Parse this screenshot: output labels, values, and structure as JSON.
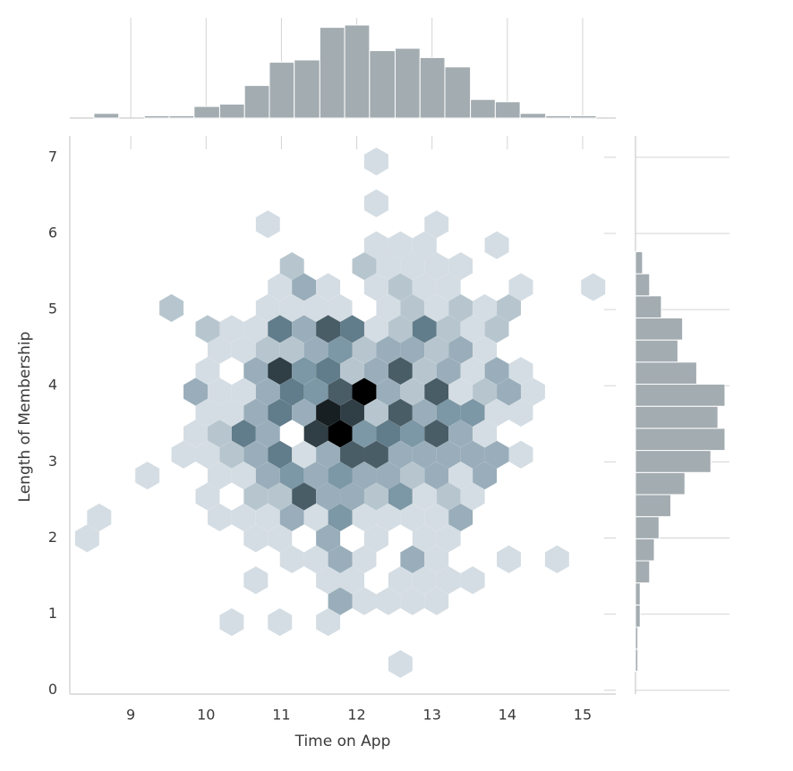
{
  "chart_data": {
    "type": "hexbin",
    "x_label": "Time on App",
    "y_label": "Length of Membership",
    "xlim": [
      8.19,
      15.44
    ],
    "ylim": [
      -0.05,
      7.28
    ],
    "xticks": [
      9,
      10,
      11,
      12,
      13,
      14,
      15
    ],
    "yticks": [
      0,
      1,
      2,
      3,
      4,
      5,
      6,
      7
    ],
    "hex_colors": [
      "#f2f5f7",
      "#6d8b9b",
      "#000000"
    ],
    "hist_color": "#a3acb1",
    "x": [
      12.26,
      12.26,
      10.82,
      13.06,
      12.26,
      12.58,
      12.9,
      13.86,
      11.14,
      12.1,
      12.42,
      12.74,
      13.06,
      13.38,
      10.98,
      11.3,
      11.62,
      12.26,
      12.58,
      12.9,
      13.22,
      14.18,
      15.14,
      9.54,
      10.82,
      11.14,
      11.46,
      11.78,
      12.42,
      12.74,
      13.06,
      13.38,
      13.7,
      14.02,
      10.02,
      10.34,
      10.66,
      10.98,
      11.3,
      11.62,
      11.94,
      12.26,
      12.58,
      12.9,
      13.22,
      13.54,
      13.86,
      10.18,
      10.5,
      10.82,
      11.14,
      11.46,
      11.78,
      12.1,
      12.42,
      12.74,
      13.06,
      13.38,
      13.7,
      10.02,
      10.66,
      10.98,
      11.3,
      11.62,
      11.94,
      12.26,
      12.58,
      12.9,
      13.22,
      13.54,
      13.86,
      14.18,
      9.86,
      10.18,
      10.5,
      10.82,
      11.14,
      11.46,
      11.78,
      12.1,
      12.42,
      12.74,
      13.06,
      13.38,
      13.7,
      14.02,
      14.34,
      10.02,
      10.34,
      10.66,
      10.98,
      11.3,
      11.62,
      11.94,
      12.26,
      12.58,
      12.9,
      13.22,
      13.54,
      13.86,
      14.18,
      9.86,
      10.18,
      10.5,
      10.82,
      11.46,
      11.78,
      12.1,
      12.42,
      12.74,
      13.06,
      13.38,
      13.7,
      9.7,
      10.02,
      10.34,
      10.66,
      10.98,
      11.3,
      11.62,
      11.94,
      12.26,
      12.58,
      12.9,
      13.22,
      13.54,
      13.86,
      14.18,
      9.22,
      10.18,
      10.5,
      10.82,
      11.14,
      11.46,
      11.78,
      12.1,
      12.42,
      12.74,
      13.06,
      13.38,
      13.7,
      10.02,
      10.66,
      10.98,
      11.3,
      11.62,
      11.94,
      12.26,
      12.58,
      12.9,
      13.22,
      13.54,
      8.58,
      10.18,
      10.5,
      10.82,
      11.14,
      11.46,
      11.78,
      12.1,
      12.42,
      12.74,
      13.06,
      13.38,
      8.42,
      10.66,
      10.98,
      11.62,
      12.26,
      12.9,
      13.22,
      11.14,
      11.46,
      11.78,
      12.1,
      12.74,
      13.06,
      14.02,
      14.66,
      10.66,
      11.62,
      11.94,
      12.58,
      12.9,
      13.22,
      13.54,
      11.78,
      12.1,
      12.42,
      12.74,
      13.06,
      10.34,
      10.98,
      11.62,
      12.58
    ],
    "y": [
      6.945,
      6.395,
      6.12,
      6.12,
      5.845,
      5.845,
      5.845,
      5.845,
      5.57,
      5.57,
      5.57,
      5.57,
      5.57,
      5.57,
      5.295,
      5.295,
      5.295,
      5.295,
      5.295,
      5.295,
      5.295,
      5.295,
      5.295,
      5.02,
      5.02,
      5.02,
      5.02,
      5.02,
      5.02,
      5.02,
      5.02,
      5.02,
      5.02,
      5.02,
      4.745,
      4.745,
      4.745,
      4.745,
      4.745,
      4.745,
      4.745,
      4.745,
      4.745,
      4.745,
      4.745,
      4.745,
      4.745,
      4.47,
      4.47,
      4.47,
      4.47,
      4.47,
      4.47,
      4.47,
      4.47,
      4.47,
      4.47,
      4.47,
      4.47,
      4.195,
      4.195,
      4.195,
      4.195,
      4.195,
      4.195,
      4.195,
      4.195,
      4.195,
      4.195,
      4.195,
      4.195,
      4.195,
      3.92,
      3.92,
      3.92,
      3.92,
      3.92,
      3.92,
      3.92,
      3.92,
      3.92,
      3.92,
      3.92,
      3.92,
      3.92,
      3.92,
      3.92,
      3.645,
      3.645,
      3.645,
      3.645,
      3.645,
      3.645,
      3.645,
      3.645,
      3.645,
      3.645,
      3.645,
      3.645,
      3.645,
      3.645,
      3.37,
      3.37,
      3.37,
      3.37,
      3.37,
      3.37,
      3.37,
      3.37,
      3.37,
      3.37,
      3.37,
      3.37,
      3.095,
      3.095,
      3.095,
      3.095,
      3.095,
      3.095,
      3.095,
      3.095,
      3.095,
      3.095,
      3.095,
      3.095,
      3.095,
      3.095,
      3.095,
      2.82,
      2.82,
      2.82,
      2.82,
      2.82,
      2.82,
      2.82,
      2.82,
      2.82,
      2.82,
      2.82,
      2.82,
      2.82,
      2.545,
      2.545,
      2.545,
      2.545,
      2.545,
      2.545,
      2.545,
      2.545,
      2.545,
      2.545,
      2.545,
      2.27,
      2.27,
      2.27,
      2.27,
      2.27,
      2.27,
      2.27,
      2.27,
      2.27,
      2.27,
      2.27,
      2.27,
      1.995,
      1.995,
      1.995,
      1.995,
      1.995,
      1.995,
      1.995,
      1.72,
      1.72,
      1.72,
      1.72,
      1.72,
      1.72,
      1.72,
      1.72,
      1.445,
      1.445,
      1.445,
      1.445,
      1.445,
      1.445,
      1.445,
      1.17,
      1.17,
      1.17,
      1.17,
      1.17,
      0.895,
      0.895,
      0.895,
      0.345
    ],
    "counts": [
      1,
      1,
      1,
      1,
      1,
      1,
      1,
      1,
      2,
      2,
      1,
      1,
      1,
      1,
      1,
      3,
      1,
      1,
      2,
      1,
      1,
      1,
      1,
      2,
      1,
      1,
      1,
      1,
      1,
      2,
      1,
      2,
      1,
      2,
      2,
      1,
      1,
      5,
      3,
      6,
      5,
      1,
      2,
      5,
      2,
      1,
      2,
      1,
      1,
      2,
      2,
      3,
      4,
      2,
      3,
      3,
      2,
      3,
      1,
      1,
      3,
      7,
      4,
      5,
      2,
      3,
      6,
      2,
      3,
      1,
      3,
      1,
      3,
      1,
      1,
      3,
      5,
      4,
      6,
      9,
      3,
      2,
      6,
      1,
      2,
      3,
      1,
      1,
      1,
      3,
      5,
      3,
      8,
      7,
      2,
      6,
      3,
      4,
      4,
      1,
      1,
      1,
      2,
      5,
      3,
      7,
      9,
      4,
      5,
      4,
      6,
      3,
      1,
      1,
      1,
      2,
      3,
      5,
      1,
      3,
      6,
      6,
      3,
      3,
      3,
      3,
      3,
      1,
      1,
      1,
      1,
      3,
      4,
      3,
      4,
      3,
      3,
      2,
      3,
      1,
      3,
      1,
      2,
      2,
      6,
      3,
      3,
      2,
      4,
      1,
      2,
      1,
      1,
      1,
      1,
      1,
      3,
      1,
      4,
      1,
      1,
      1,
      1,
      3,
      1,
      1,
      1,
      3,
      1,
      1,
      1,
      1,
      1,
      3,
      1,
      3,
      1,
      1,
      1,
      1,
      1,
      1,
      1,
      1,
      1,
      1,
      3,
      1,
      1,
      1,
      1,
      1,
      1,
      1,
      1
    ],
    "marginal_x": {
      "bins": [
        8.51,
        8.84,
        9.18,
        9.51,
        9.84,
        10.18,
        10.51,
        10.84,
        11.17,
        11.51,
        11.84,
        12.17,
        12.51,
        12.84,
        13.17,
        13.51,
        13.84,
        14.17,
        14.51,
        14.84,
        15.18
      ],
      "counts": [
        2,
        0,
        1,
        1,
        5,
        6,
        14,
        24,
        25,
        39,
        40,
        29,
        30,
        26,
        22,
        8,
        7,
        2,
        1,
        1
      ]
    },
    "marginal_y": {
      "bins": [
        0.25,
        0.54,
        0.83,
        1.12,
        1.41,
        1.7,
        1.99,
        2.28,
        2.57,
        2.86,
        3.15,
        3.44,
        3.73,
        4.02,
        4.31,
        4.6,
        4.89,
        5.18,
        5.47,
        5.76
      ],
      "counts": [
        1,
        1,
        2,
        2,
        6,
        8,
        10,
        15,
        21,
        32,
        38,
        35,
        38,
        26,
        18,
        20,
        11,
        6,
        3
      ]
    }
  }
}
